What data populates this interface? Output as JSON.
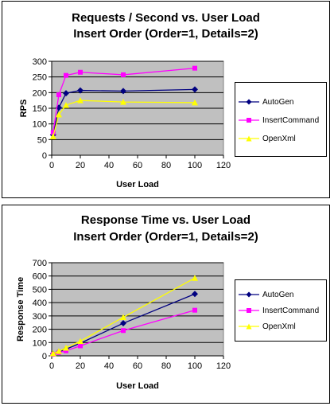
{
  "colors": {
    "AutoGen": "#000080",
    "InsertCommand": "#FF00FF",
    "OpenXml": "#FFFF00",
    "plot_background": "#C0C0C0"
  },
  "chart_data": [
    {
      "type": "line",
      "title": "Requests / Second  vs.  User Load",
      "subtitle": "Insert Order (Order=1, Details=2)",
      "xlabel": "User Load",
      "ylabel": "RPS",
      "xlim": [
        0,
        120
      ],
      "ylim": [
        0,
        300
      ],
      "x_ticks": [
        "0",
        "20",
        "40",
        "60",
        "80",
        "100",
        "120"
      ],
      "y_ticks": [
        "0",
        "50",
        "100",
        "150",
        "200",
        "250",
        "300"
      ],
      "grid": "horizontal",
      "legend_position": "right",
      "series": [
        {
          "name": "AutoGen",
          "marker": "diamond",
          "points": [
            [
              1,
              65
            ],
            [
              5,
              152
            ],
            [
              10,
              198
            ],
            [
              20,
              207
            ],
            [
              50,
              205
            ],
            [
              100,
              210
            ]
          ]
        },
        {
          "name": "InsertCommand",
          "marker": "square",
          "points": [
            [
              1,
              73
            ],
            [
              5,
              193
            ],
            [
              10,
              255
            ],
            [
              20,
              265
            ],
            [
              50,
              257
            ],
            [
              100,
              278
            ]
          ]
        },
        {
          "name": "OpenXml",
          "marker": "triangle",
          "points": [
            [
              1,
              60
            ],
            [
              5,
              130
            ],
            [
              10,
              160
            ],
            [
              20,
              175
            ],
            [
              50,
              170
            ],
            [
              100,
              168
            ]
          ]
        }
      ]
    },
    {
      "type": "line",
      "title": "Response Time  vs.  User Load",
      "subtitle": "Insert Order (Order=1, Details=2)",
      "xlabel": "User Load",
      "ylabel": "Response Time",
      "xlim": [
        0,
        120
      ],
      "ylim": [
        0,
        700
      ],
      "x_ticks": [
        "0",
        "20",
        "40",
        "60",
        "80",
        "100",
        "120"
      ],
      "y_ticks": [
        "0",
        "100",
        "200",
        "300",
        "400",
        "500",
        "600",
        "700"
      ],
      "grid": "horizontal",
      "legend_position": "right",
      "series": [
        {
          "name": "AutoGen",
          "marker": "diamond",
          "points": [
            [
              1,
              15
            ],
            [
              5,
              30
            ],
            [
              10,
              50
            ],
            [
              20,
              95
            ],
            [
              50,
              245
            ],
            [
              100,
              465
            ]
          ]
        },
        {
          "name": "InsertCommand",
          "marker": "square",
          "points": [
            [
              1,
              12
            ],
            [
              5,
              25
            ],
            [
              10,
              38
            ],
            [
              20,
              75
            ],
            [
              50,
              190
            ],
            [
              100,
              343
            ]
          ]
        },
        {
          "name": "OpenXml",
          "marker": "triangle",
          "points": [
            [
              1,
              18
            ],
            [
              5,
              35
            ],
            [
              10,
              60
            ],
            [
              20,
              110
            ],
            [
              50,
              290
            ],
            [
              100,
              585
            ]
          ]
        }
      ]
    }
  ]
}
